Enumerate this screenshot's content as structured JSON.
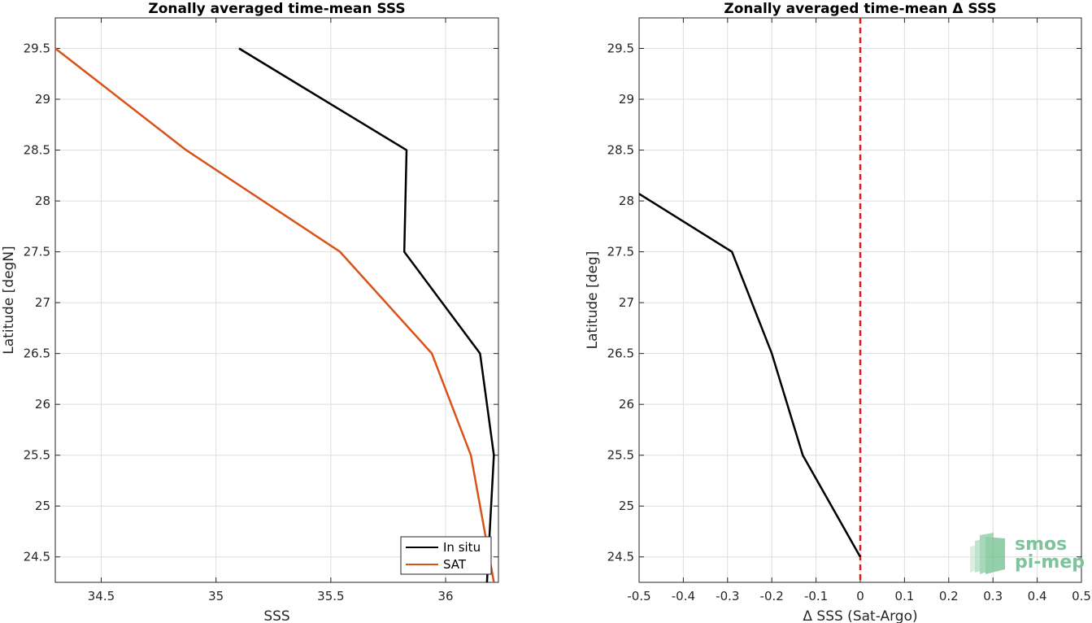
{
  "chart_data": [
    {
      "type": "line",
      "title": "Zonally averaged time-mean SSS",
      "xlabel": "SSS",
      "ylabel": "Latitude [degN]",
      "xlim": [
        34.3,
        36.23
      ],
      "ylim": [
        24.25,
        29.8
      ],
      "xticks": [
        "34.5",
        "35",
        "35.5",
        "36"
      ],
      "yticks": [
        "24.5",
        "25",
        "25.5",
        "26",
        "26.5",
        "27",
        "27.5",
        "28",
        "28.5",
        "29",
        "29.5"
      ],
      "grid": true,
      "legend_position": "bottom-right",
      "series": [
        {
          "name": "In situ",
          "color": "#000000",
          "x": [
            36.18,
            36.21,
            36.15,
            35.82,
            35.83,
            35.1
          ],
          "y": [
            24.25,
            25.5,
            26.5,
            27.5,
            28.5,
            29.5
          ]
        },
        {
          "name": "SAT",
          "color": "#D95319",
          "x": [
            36.21,
            36.11,
            35.94,
            35.54,
            34.87,
            34.3
          ],
          "y": [
            24.25,
            25.5,
            26.5,
            27.5,
            28.5,
            29.5
          ]
        }
      ]
    },
    {
      "type": "line",
      "title": "Zonally averaged time-mean Δ SSS",
      "xlabel": "Δ SSS (Sat-Argo)",
      "ylabel": "Latitude [deg]",
      "xlim": [
        -0.5,
        0.5
      ],
      "ylim": [
        24.25,
        29.8
      ],
      "xticks": [
        "-0.5",
        "-0.4",
        "-0.3",
        "-0.2",
        "-0.1",
        "0",
        "0.1",
        "0.2",
        "0.3",
        "0.4",
        "0.5"
      ],
      "yticks": [
        "24.5",
        "25",
        "25.5",
        "26",
        "26.5",
        "27",
        "27.5",
        "28",
        "28.5",
        "29",
        "29.5"
      ],
      "grid": true,
      "reference_line": {
        "x": 0,
        "style": "dashed",
        "color": "#E31A1C"
      },
      "series": [
        {
          "color": "#000000",
          "x": [
            0.0,
            -0.13,
            -0.2,
            -0.29,
            -0.5
          ],
          "y": [
            24.5,
            25.5,
            26.5,
            27.5,
            28.07
          ]
        }
      ]
    }
  ],
  "logo": {
    "line1": "smos",
    "line2": "pi-mep",
    "color": "#7FC29B"
  }
}
